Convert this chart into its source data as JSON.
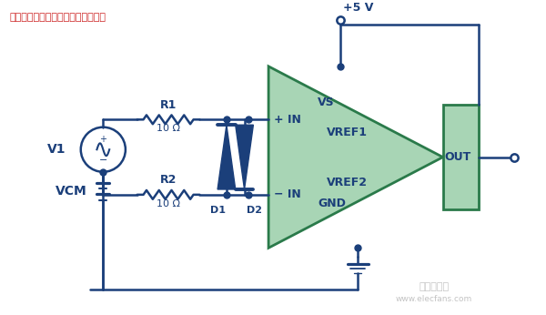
{
  "title": "电流检测放大器的差分过压保护电路",
  "bg_color": "#ffffff",
  "wire_color": "#1b3f7a",
  "amp_fill_color": "#a8d5b5",
  "amp_edge_color": "#2a7a4a",
  "text_color": "#1b3f7a",
  "line_width": 1.8,
  "font_size": 9,
  "title_font_size": 8,
  "watermark_text": "电子发烧友",
  "watermark_url": "www.elecfans.com"
}
